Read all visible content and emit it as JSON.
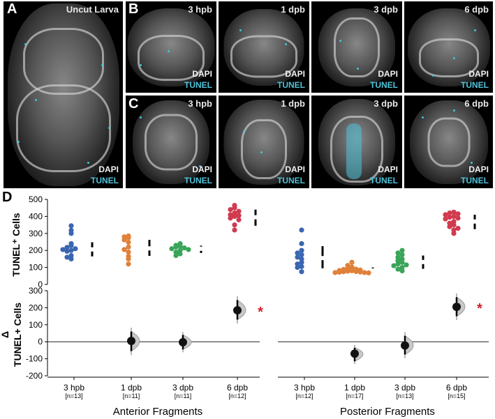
{
  "panel_labels": {
    "a": "A",
    "b": "B",
    "c": "C",
    "d": "D"
  },
  "panel_a": {
    "caption": "Uncut Larva",
    "dapi": "DAPI",
    "tunel": "TUNEL"
  },
  "panel_b": [
    {
      "caption": "3 hpb",
      "dapi": "DAPI",
      "tunel": "TUNEL"
    },
    {
      "caption": "1 dpb",
      "dapi": "DAPI",
      "tunel": "TUNEL"
    },
    {
      "caption": "3 dpb",
      "dapi": "DAPI",
      "tunel": "TUNEL"
    },
    {
      "caption": "6 dpb",
      "dapi": "DAPI",
      "tunel": "TUNEL"
    }
  ],
  "panel_c": [
    {
      "caption": "3 hpb",
      "dapi": "DAPI",
      "tunel": "TUNEL"
    },
    {
      "caption": "1 dpb",
      "dapi": "DAPI",
      "tunel": "TUNEL"
    },
    {
      "caption": "3 dpb",
      "dapi": "DAPI",
      "tunel": "TUNEL"
    },
    {
      "caption": "6 dpb",
      "dapi": "DAPI",
      "tunel": "TUNEL"
    }
  ],
  "colors": {
    "hpb3": "#3a66b0",
    "dpb1": "#e0813a",
    "dpb3": "#3aa55a",
    "dpb6": "#d03b4f",
    "tunel": "#4fc3d9",
    "star": "#d0202a"
  },
  "chart_data": {
    "type": "scatter",
    "top_ylabel": "TUNEL⁺ Cells",
    "bottom_ylabel_delta": "Δ",
    "bottom_ylabel": "TUNEL+ Cells",
    "top_ylim": [
      0,
      500
    ],
    "top_yticks": [
      "500",
      "400",
      "300",
      "200",
      "100",
      "0"
    ],
    "bottom_ylim": [
      -200,
      300
    ],
    "bottom_yticks": [
      "300",
      "200",
      "100",
      "0",
      "-100",
      "-200"
    ],
    "significance_marker": "*",
    "groups": [
      {
        "name": "Anterior Fragments",
        "conditions": [
          {
            "label": "3 hpb",
            "n": "[n=13]",
            "color_key": "hpb3",
            "values": [
              345,
              318,
              300,
              240,
              228,
              218,
              210,
              205,
              200,
              195,
              170,
              160,
              150
            ],
            "mean": 206,
            "sd_low": 165,
            "sd_high": 248,
            "delta": null
          },
          {
            "label": "1 dpb",
            "n": "[n=11]",
            "color_key": "dpb1",
            "values": [
              285,
              280,
              275,
              262,
              248,
              220,
              205,
              190,
              165,
              150,
              120
            ],
            "mean": 212,
            "sd_low": 168,
            "sd_high": 262,
            "delta": {
              "value": 5,
              "ci": [
                -55,
                60
              ]
            }
          },
          {
            "label": "3 dpb",
            "n": "[n=11]",
            "color_key": "dpb3",
            "values": [
              240,
              230,
              226,
              220,
              215,
              210,
              205,
              200,
              190,
              180,
              170
            ],
            "mean": 210,
            "sd_low": 185,
            "sd_high": 228,
            "delta": {
              "value": -3,
              "ci": [
                -45,
                40
              ]
            }
          },
          {
            "label": "6 dpb",
            "n": "[n=12]",
            "color_key": "dpb6",
            "values": [
              465,
              450,
              440,
              430,
              420,
              410,
              405,
              400,
              390,
              380,
              350,
              320
            ],
            "mean": 395,
            "sd_low": 345,
            "sd_high": 440,
            "delta": {
              "value": 185,
              "ci": [
                130,
                245
              ]
            },
            "significant": true
          }
        ]
      },
      {
        "name": "Posterior Fragments",
        "conditions": [
          {
            "label": "3 hpb",
            "n": "[n=12]",
            "color_key": "hpb3",
            "values": [
              320,
              240,
              200,
              185,
              175,
              160,
              150,
              130,
              120,
              105,
              100,
              75
            ],
            "mean": 155,
            "sd_low": 95,
            "sd_high": 225,
            "delta": null
          },
          {
            "label": "1 dpb",
            "n": "[n=17]",
            "color_key": "dpb1",
            "values": [
              130,
              112,
              102,
              95,
              90,
              88,
              85,
              82,
              80,
              78,
              76,
              75,
              73,
              72,
              70,
              70,
              68
            ],
            "mean": 82,
            "sd_low": 70,
            "sd_high": 100,
            "delta": {
              "value": -70,
              "ci": [
                -115,
                -35
              ]
            }
          },
          {
            "label": "3 dpb",
            "n": "[n=13]",
            "color_key": "dpb3",
            "values": [
              200,
              185,
              175,
              160,
              150,
              140,
              130,
              120,
              115,
              110,
              100,
              90,
              80
            ],
            "mean": 132,
            "sd_low": 92,
            "sd_high": 170,
            "delta": {
              "value": -22,
              "ci": [
                -75,
                35
              ]
            }
          },
          {
            "label": "6 dpb",
            "n": "[n=15]",
            "color_key": "dpb6",
            "values": [
              425,
              420,
              415,
              410,
              400,
              395,
              390,
              385,
              370,
              360,
              350,
              340,
              330,
              320,
              300
            ],
            "mean": 370,
            "sd_low": 325,
            "sd_high": 410,
            "delta": {
              "value": 205,
              "ci": [
                150,
                262
              ]
            },
            "significant": true
          }
        ]
      }
    ]
  }
}
